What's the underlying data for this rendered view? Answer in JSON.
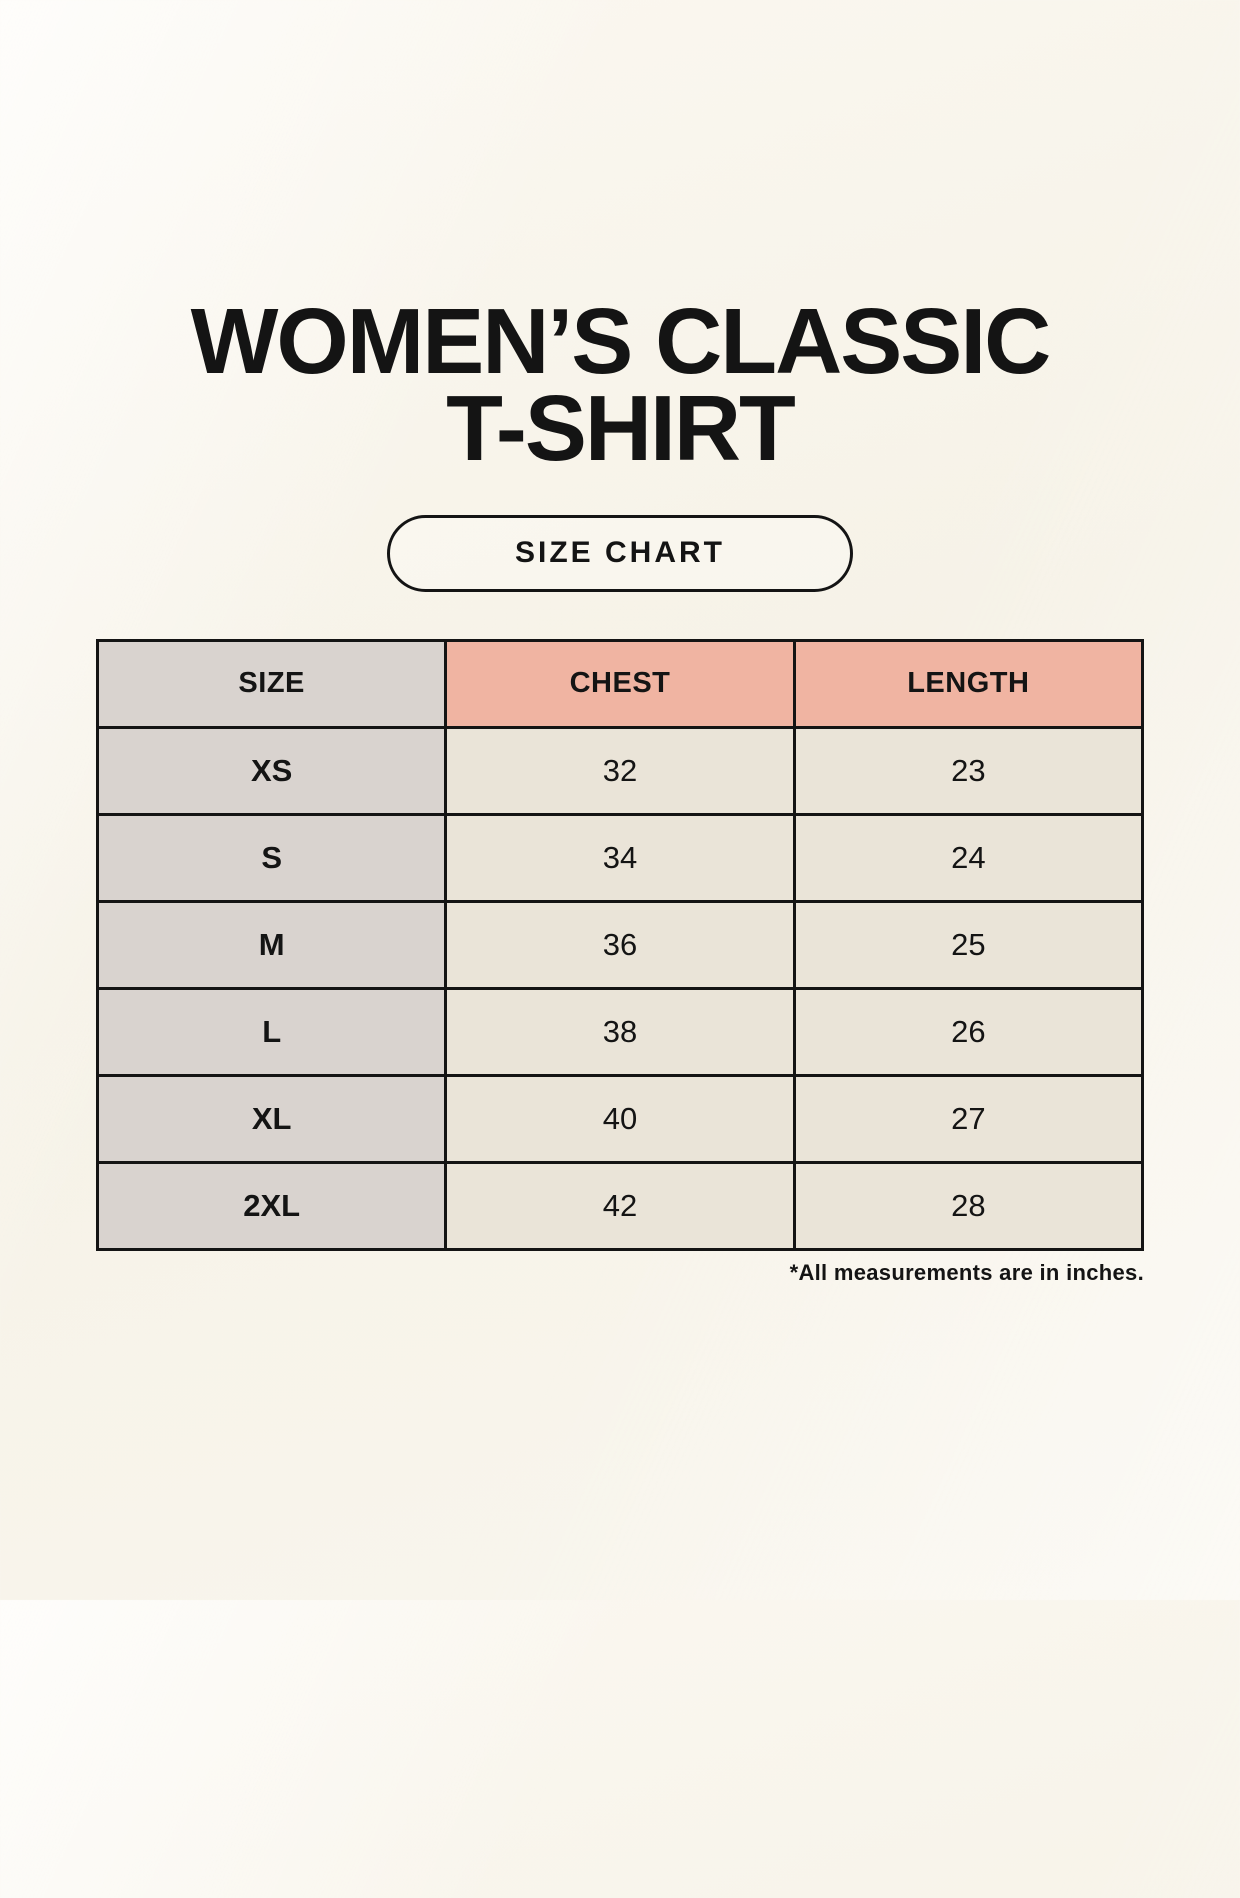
{
  "title": {
    "line1": "WOMEN’S CLASSIC",
    "line2": "T-SHIRT"
  },
  "badge": {
    "label": "SIZE CHART"
  },
  "footnote": "*All measurements are in inches.",
  "colors": {
    "background": "#f8f5ed",
    "header_measure_bg": "#f0b4a2",
    "size_column_bg": "#d9d3cf",
    "data_cell_bg": "#eae4d8",
    "border": "#141414",
    "text": "#141414"
  },
  "chart_data": {
    "type": "table",
    "title": "WOMEN’S CLASSIC T-SHIRT SIZE CHART",
    "columns": [
      "SIZE",
      "CHEST",
      "LENGTH"
    ],
    "rows": [
      [
        "XS",
        "32",
        "23"
      ],
      [
        "S",
        "34",
        "24"
      ],
      [
        "M",
        "36",
        "25"
      ],
      [
        "L",
        "38",
        "26"
      ],
      [
        "XL",
        "40",
        "27"
      ],
      [
        "2XL",
        "42",
        "28"
      ]
    ],
    "units": "inches"
  }
}
